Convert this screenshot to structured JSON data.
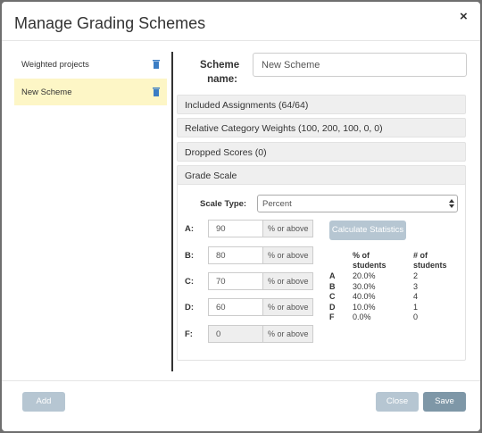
{
  "header": {
    "title": "Manage Grading Schemes",
    "close": "×"
  },
  "schemes": [
    "Weighted projects",
    "New Scheme"
  ],
  "form": {
    "scheme_name_label": "Scheme name:",
    "scheme_name_value": "New Scheme",
    "sections": [
      "Included Assignments (64/64)",
      "Relative Category Weights (100, 200, 100, 0, 0)",
      "Dropped Scores (0)",
      "Grade Scale"
    ],
    "grade_scale": {
      "scale_type_label": "Scale Type:",
      "scale_type": "Percent",
      "grades": [
        {
          "label": "A:",
          "value": 90,
          "suffix": "% or above"
        },
        {
          "label": "B:",
          "value": 80,
          "suffix": "% or above"
        },
        {
          "label": "C:",
          "value": 70,
          "suffix": "% or above"
        },
        {
          "label": "D:",
          "value": 60,
          "suffix": "% or above"
        },
        {
          "label": "F:",
          "value": 0,
          "suffix": "% or above"
        }
      ],
      "calculate_button": "Calculate Statistics",
      "stats": {
        "headers": [
          "% of students",
          "# of students"
        ],
        "rows": [
          [
            "A",
            "20.0%",
            2
          ],
          [
            "B",
            "30.0%",
            3
          ],
          [
            "C",
            "40.0%",
            4
          ],
          [
            "D",
            "10.0%",
            1
          ],
          [
            "F",
            "0.0%",
            0
          ]
        ]
      }
    }
  },
  "footer": {
    "add": "Add",
    "close": "Close",
    "save": "Save"
  }
}
